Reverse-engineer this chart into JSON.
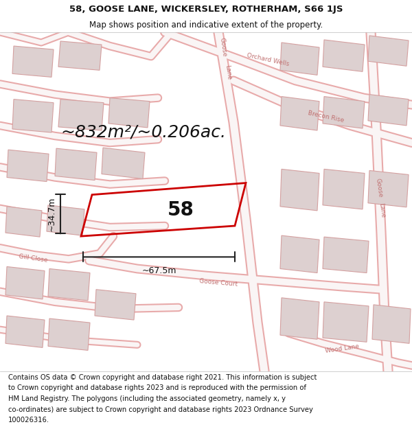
{
  "title_line1": "58, GOOSE LANE, WICKERSLEY, ROTHERHAM, S66 1JS",
  "title_line2": "Map shows position and indicative extent of the property.",
  "footer_lines": [
    "Contains OS data © Crown copyright and database right 2021. This information is subject",
    "to Crown copyright and database rights 2023 and is reproduced with the permission of",
    "HM Land Registry. The polygons (including the associated geometry, namely x, y",
    "co-ordinates) are subject to Crown copyright and database rights 2023 Ordnance Survey",
    "100026316."
  ],
  "area_label": "~832m²/~0.206ac.",
  "width_label": "~67.5m",
  "height_label": "~34.7m",
  "plot_number": "58",
  "map_bg": "#f7f0f0",
  "road_color": "#e8aaaa",
  "road_fill": "#faf5f5",
  "building_fill": "#ddd0d0",
  "building_edge": "#d4a0a0",
  "plot_outline_color": "#cc0000",
  "dim_color": "#222222",
  "text_color": "#111111",
  "street_label_color": "#c07070",
  "title_fontsize": 9.5,
  "subtitle_fontsize": 8.5,
  "footer_fontsize": 7.2,
  "area_fontsize": 18,
  "dim_fontsize": 9,
  "plot_label_fontsize": 20,
  "street_label_fontsize": 6.5
}
